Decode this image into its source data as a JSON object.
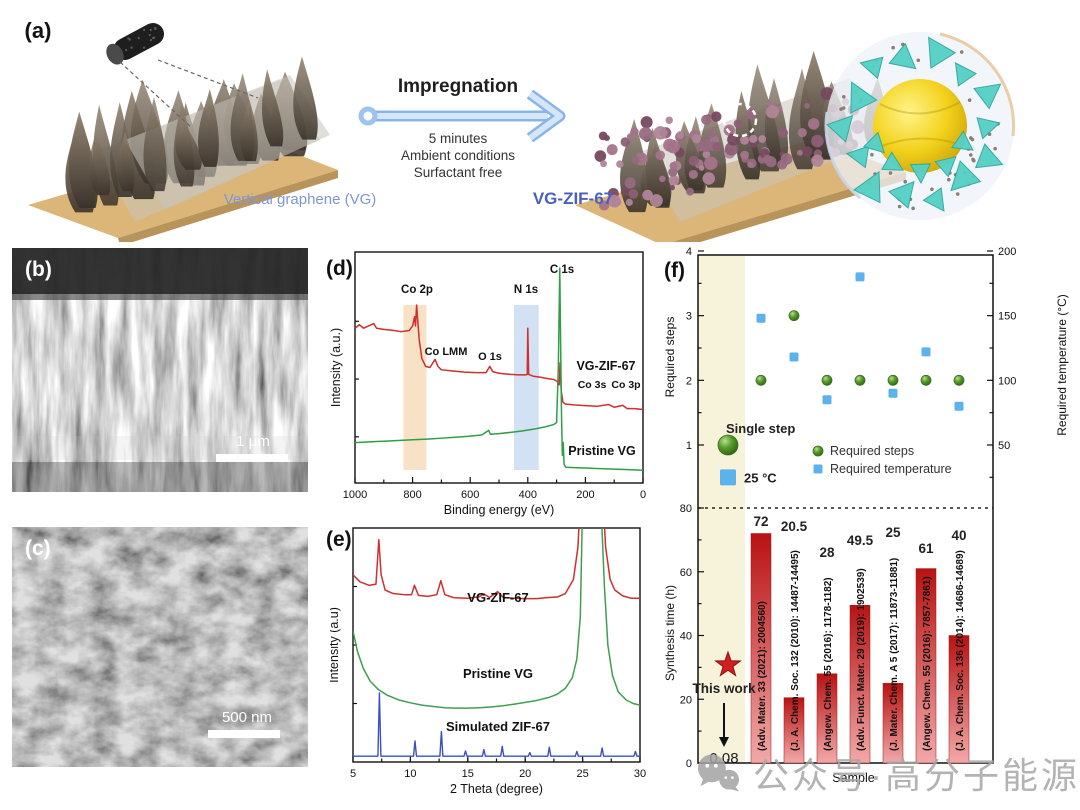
{
  "panels": {
    "a": {
      "label": "(a)",
      "process_title": "Impregnation",
      "conditions": [
        "5 minutes",
        "Ambient conditions",
        "Surfactant free"
      ],
      "left_caption": "Vertical graphene (VG)",
      "right_caption": "VG-ZIF-67",
      "caption_color": "#7d97d6",
      "right_caption_color": "#4a5fc0",
      "arrow_color": "#a9cbf0"
    },
    "b": {
      "label": "(b)",
      "scale_bar": "1 μm"
    },
    "c": {
      "label": "(c)",
      "scale_bar": "500 nm"
    },
    "d": {
      "label": "(d)"
    },
    "e": {
      "label": "(e)"
    },
    "f": {
      "label": "(f)"
    }
  },
  "chart_data": [
    {
      "panel": "d",
      "type": "line",
      "xlabel": "Binding energy (eV)",
      "ylabel": "Intensity (a.u.)",
      "xlim": [
        1000,
        0
      ],
      "x_ticks": [
        1000,
        800,
        600,
        400,
        200,
        0
      ],
      "grid": false,
      "highlight_bands": [
        {
          "x_range": [
            832,
            752
          ],
          "color": "#f6ddbb"
        },
        {
          "x_range": [
            448,
            362
          ],
          "color": "#cbdcf2"
        }
      ],
      "peak_labels": {
        "co2p": "Co 2p",
        "colmm": "Co LMM",
        "o1s": "O 1s",
        "n1s": "N 1s",
        "c1s": "C 1s",
        "co3s": "Co 3s",
        "co3p": "Co 3p"
      },
      "series": [
        {
          "name": "VG-ZIF-67",
          "color": "#cf2f2f",
          "points": [
            [
              1000,
              0.67
            ],
            [
              985,
              0.685
            ],
            [
              970,
              0.67
            ],
            [
              935,
              0.69
            ],
            [
              925,
              0.67
            ],
            [
              900,
              0.665
            ],
            [
              865,
              0.66
            ],
            [
              840,
              0.655
            ],
            [
              812,
              0.66
            ],
            [
              800,
              0.68
            ],
            [
              793,
              0.72
            ],
            [
              790,
              0.68
            ],
            [
              786,
              0.77
            ],
            [
              782,
              0.7
            ],
            [
              777,
              0.62
            ],
            [
              768,
              0.54
            ],
            [
              755,
              0.505
            ],
            [
              740,
              0.5
            ],
            [
              722,
              0.535
            ],
            [
              712,
              0.505
            ],
            [
              700,
              0.49
            ],
            [
              660,
              0.485
            ],
            [
              620,
              0.48
            ],
            [
              580,
              0.478
            ],
            [
              545,
              0.478
            ],
            [
              532,
              0.505
            ],
            [
              522,
              0.482
            ],
            [
              500,
              0.475
            ],
            [
              460,
              0.47
            ],
            [
              430,
              0.468
            ],
            [
              408,
              0.468
            ],
            [
              402,
              0.47
            ],
            [
              400,
              0.67
            ],
            [
              397,
              0.47
            ],
            [
              380,
              0.462
            ],
            [
              355,
              0.458
            ],
            [
              330,
              0.452
            ],
            [
              310,
              0.448
            ],
            [
              298,
              0.44
            ],
            [
              291,
              0.425
            ],
            [
              288,
              0.52
            ],
            [
              284,
              0.4
            ],
            [
              278,
              0.35
            ],
            [
              270,
              0.342
            ],
            [
              240,
              0.338
            ],
            [
              200,
              0.335
            ],
            [
              160,
              0.332
            ],
            [
              120,
              0.34
            ],
            [
              100,
              0.328
            ],
            [
              70,
              0.336
            ],
            [
              55,
              0.322
            ],
            [
              30,
              0.322
            ],
            [
              0,
              0.318
            ]
          ]
        },
        {
          "name": "Pristine VG",
          "color": "#2f9e46",
          "points": [
            [
              1000,
              0.175
            ],
            [
              950,
              0.178
            ],
            [
              900,
              0.181
            ],
            [
              850,
              0.184
            ],
            [
              800,
              0.187
            ],
            [
              750,
              0.19
            ],
            [
              700,
              0.194
            ],
            [
              650,
              0.198
            ],
            [
              600,
              0.203
            ],
            [
              560,
              0.208
            ],
            [
              536,
              0.228
            ],
            [
              530,
              0.211
            ],
            [
              500,
              0.214
            ],
            [
              460,
              0.219
            ],
            [
              420,
              0.225
            ],
            [
              380,
              0.233
            ],
            [
              340,
              0.243
            ],
            [
              310,
              0.253
            ],
            [
              300,
              0.262
            ],
            [
              294,
              0.5
            ],
            [
              289,
              0.93
            ],
            [
              286,
              0.6
            ],
            [
              283,
              0.3
            ],
            [
              280,
              0.12
            ],
            [
              277,
              0.175
            ],
            [
              274,
              0.08
            ],
            [
              268,
              0.068
            ],
            [
              230,
              0.066
            ],
            [
              200,
              0.065
            ],
            [
              150,
              0.062
            ],
            [
              100,
              0.06
            ],
            [
              50,
              0.058
            ],
            [
              0,
              0.055
            ]
          ]
        }
      ]
    },
    {
      "panel": "e",
      "type": "line",
      "xlabel": "2 Theta (degree)",
      "ylabel": "Intensity (a.u)",
      "xlim": [
        5,
        30
      ],
      "x_ticks": [
        5,
        10,
        15,
        20,
        25,
        30
      ],
      "grid": false,
      "series": [
        {
          "name": "VG-ZIF-67",
          "color": "#cf2f2f",
          "points": [
            [
              5,
              0.8
            ],
            [
              5.6,
              0.77
            ],
            [
              6.4,
              0.755
            ],
            [
              7.0,
              0.76
            ],
            [
              7.25,
              0.95
            ],
            [
              7.45,
              0.8
            ],
            [
              7.8,
              0.735
            ],
            [
              8.5,
              0.72
            ],
            [
              9.5,
              0.715
            ],
            [
              10.1,
              0.715
            ],
            [
              10.35,
              0.755
            ],
            [
              10.7,
              0.712
            ],
            [
              11.5,
              0.708
            ],
            [
              12.3,
              0.715
            ],
            [
              12.65,
              0.775
            ],
            [
              13.0,
              0.715
            ],
            [
              13.8,
              0.702
            ],
            [
              15,
              0.7
            ],
            [
              16,
              0.706
            ],
            [
              16.4,
              0.718
            ],
            [
              16.9,
              0.703
            ],
            [
              17.6,
              0.728
            ],
            [
              18.1,
              0.703
            ],
            [
              19,
              0.7
            ],
            [
              20,
              0.698
            ],
            [
              21,
              0.698
            ],
            [
              22,
              0.703
            ],
            [
              22.8,
              0.705
            ],
            [
              23.5,
              0.72
            ],
            [
              24.2,
              0.78
            ],
            [
              24.6,
              0.92
            ],
            [
              25.0,
              1.35
            ],
            [
              26.0,
              1.5
            ],
            [
              26.6,
              1.3
            ],
            [
              27.0,
              0.92
            ],
            [
              27.4,
              0.78
            ],
            [
              27.8,
              0.735
            ],
            [
              28.5,
              0.71
            ],
            [
              29.2,
              0.7
            ],
            [
              30,
              0.7
            ]
          ]
        },
        {
          "name": "Pristine VG",
          "color": "#3f9e50",
          "points": [
            [
              5,
              0.56
            ],
            [
              5.4,
              0.47
            ],
            [
              5.9,
              0.4
            ],
            [
              6.5,
              0.345
            ],
            [
              7.2,
              0.31
            ],
            [
              8,
              0.285
            ],
            [
              9,
              0.265
            ],
            [
              10,
              0.253
            ],
            [
              11,
              0.243
            ],
            [
              12,
              0.237
            ],
            [
              13,
              0.232
            ],
            [
              14,
              0.23
            ],
            [
              15,
              0.23
            ],
            [
              16,
              0.232
            ],
            [
              17,
              0.235
            ],
            [
              18,
              0.24
            ],
            [
              19,
              0.247
            ],
            [
              20,
              0.255
            ],
            [
              21,
              0.263
            ],
            [
              22,
              0.275
            ],
            [
              22.8,
              0.29
            ],
            [
              23.5,
              0.315
            ],
            [
              24.1,
              0.36
            ],
            [
              24.5,
              0.44
            ],
            [
              24.8,
              0.62
            ],
            [
              25.1,
              1.35
            ],
            [
              26.3,
              1.45
            ],
            [
              26.9,
              0.75
            ],
            [
              27.2,
              0.5
            ],
            [
              27.6,
              0.37
            ],
            [
              28.1,
              0.3
            ],
            [
              28.8,
              0.265
            ],
            [
              29.4,
              0.25
            ],
            [
              30,
              0.243
            ]
          ]
        },
        {
          "name": "Simulated ZIF-67",
          "color": "#3b4fc2",
          "baseline": 0.025,
          "peaks": [
            [
              7.3,
              0.27
            ],
            [
              10.4,
              0.065
            ],
            [
              12.7,
              0.105
            ],
            [
              14.8,
              0.022
            ],
            [
              16.4,
              0.028
            ],
            [
              18.0,
              0.042
            ],
            [
              20.4,
              0.015
            ],
            [
              22.1,
              0.038
            ],
            [
              24.5,
              0.02
            ],
            [
              26.7,
              0.035
            ],
            [
              29.6,
              0.02
            ]
          ]
        }
      ]
    },
    {
      "panel": "f-top",
      "type": "scatter",
      "ylabel_left": "Required steps",
      "ylabel_right": "Required temperature (°C)",
      "ylim_left": [
        1,
        4
      ],
      "yticks_left": [
        4,
        3,
        2,
        1
      ],
      "ylim_right": [
        0,
        200
      ],
      "yticks_right": [
        200,
        150,
        100,
        50
      ],
      "x_samples": [
        1,
        2,
        3,
        4,
        5,
        6,
        7,
        8
      ],
      "series": [
        {
          "name": "Required steps",
          "marker": "circle",
          "color": "#5a9e2e",
          "values": [
            1,
            2,
            3,
            2,
            2,
            2,
            2,
            2
          ]
        },
        {
          "name": "Required temperature",
          "marker": "square",
          "color": "#5cb2ec",
          "values": [
            25,
            148,
            118,
            85,
            180,
            90,
            122,
            80
          ]
        }
      ],
      "annotations": {
        "single_step": "Single step",
        "temp_25": "25 °C"
      },
      "highlight_color": "#f7f3da"
    },
    {
      "panel": "f-bottom",
      "type": "bar",
      "ylabel": "Synthesis time (h)",
      "xlabel": "Sample",
      "ylim": [
        0,
        80
      ],
      "y_ticks": [
        80,
        60,
        40,
        20,
        0
      ],
      "dashed_level": 80,
      "this_work": {
        "label": "This work",
        "value_label": "0.08",
        "marker": "star",
        "star_color": "#cf2020"
      },
      "bars": [
        {
          "value": 72,
          "value_label": "72",
          "ref": "(Adv. Mater. 33 (2021): 2004560)"
        },
        {
          "value": 20.5,
          "value_label": "20.5",
          "ref": "(J. A. Chem. Soc. 132 (2010): 14487-14495)"
        },
        {
          "value": 28,
          "value_label": "28",
          "ref": "(Angew. Chem. 55 (2016): 1178-1182)"
        },
        {
          "value": 49.5,
          "value_label": "49.5",
          "ref": "(Adv. Funct. Mater. 29 (2019): 1902539)"
        },
        {
          "value": 25,
          "value_label": "25",
          "ref": "(J. Mater. Chem. A 5 (2017): 11873-11881)"
        },
        {
          "value": 61,
          "value_label": "61",
          "ref": "(Angew. Chem. 55 (2016): 7857-7861)"
        },
        {
          "value": 40,
          "value_label": "40",
          "ref": "(J. A. Chem. Soc. 136 (2014): 14686-14689)"
        }
      ],
      "bar_color_top": "#b91212",
      "bar_color_bottom": "#f2a8a8"
    }
  ],
  "watermark": {
    "icon": "wechat-icon",
    "text": "公众号·高分子能源"
  }
}
